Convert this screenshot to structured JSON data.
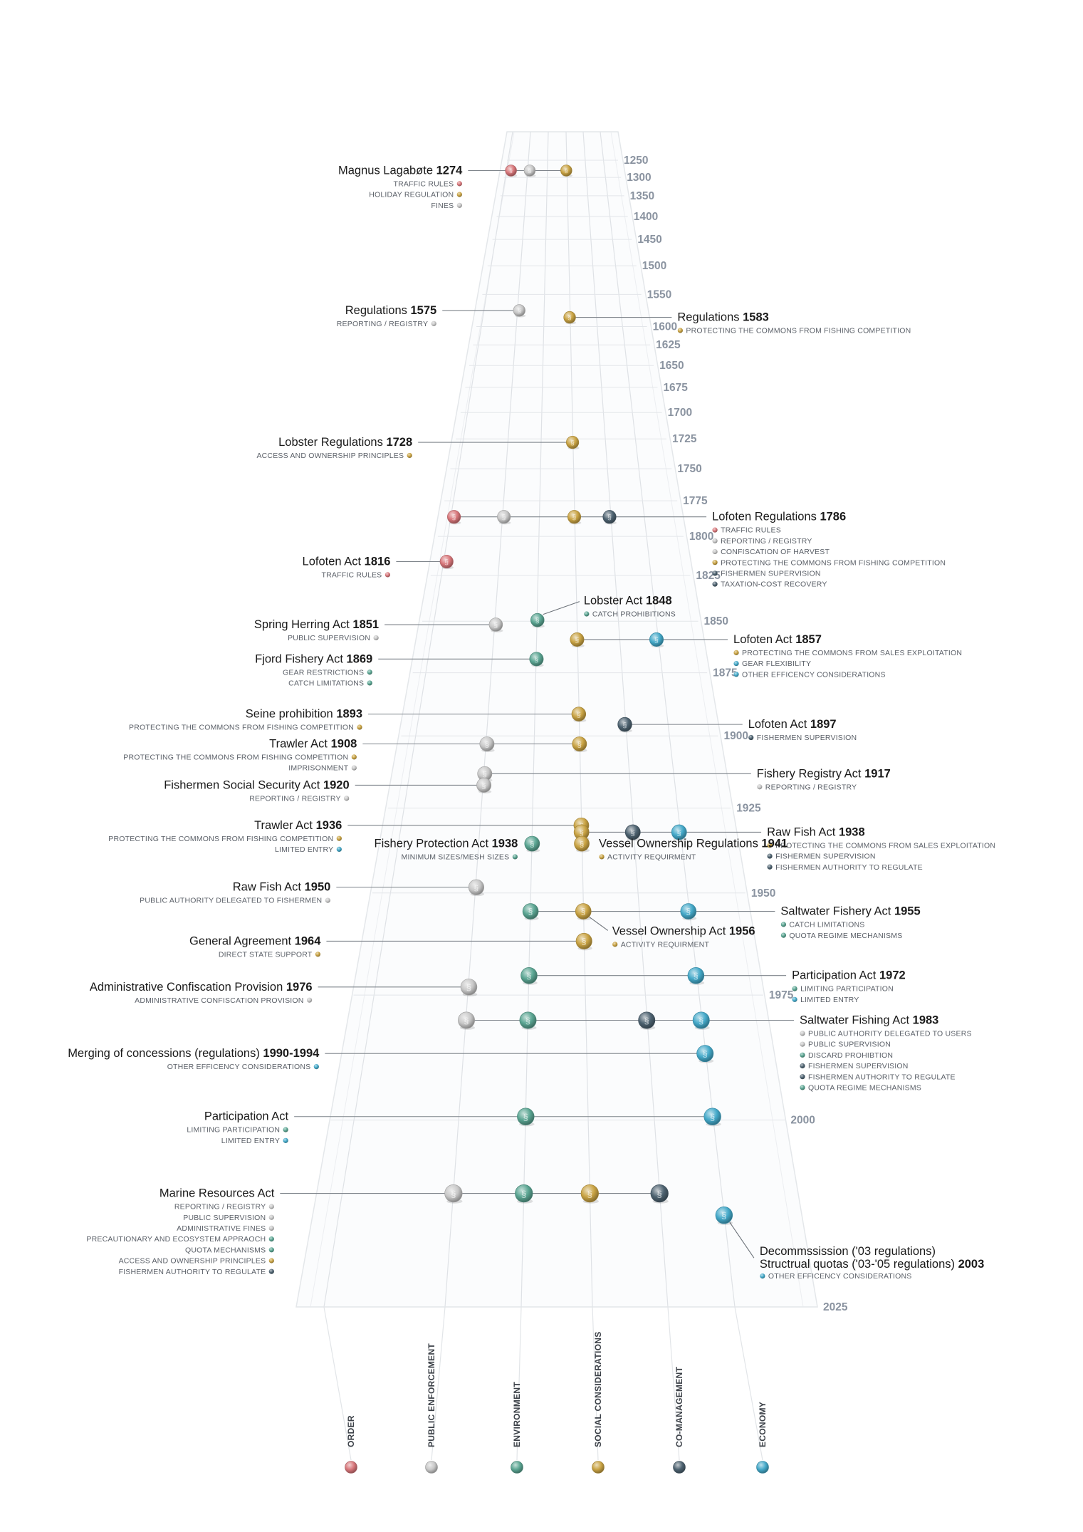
{
  "colors": {
    "order": "#d8767a",
    "enforcement": "#c8c8c8",
    "environment": "#5aa592",
    "social": "#c9a343",
    "comanagement": "#4d6270",
    "economy": "#44a9c9"
  },
  "icon_symbol": "§",
  "axes": [
    {
      "label": "ORDER",
      "key": "order"
    },
    {
      "label": "PUBLIC ENFORCEMENT",
      "key": "enforcement"
    },
    {
      "label": "ENVIRONMENT",
      "key": "environment"
    },
    {
      "label": "SOCIAL CONSIDERATIONS",
      "key": "social"
    },
    {
      "label": "CO-MANAGEMENT",
      "key": "comanagement"
    },
    {
      "label": "ECONOMY",
      "key": "economy"
    }
  ],
  "years": [
    {
      "label": "1250",
      "t": 0.0
    },
    {
      "label": "1300",
      "t": 0.015
    },
    {
      "label": "1350",
      "t": 0.031
    },
    {
      "label": "1400",
      "t": 0.049
    },
    {
      "label": "1450",
      "t": 0.069
    },
    {
      "label": "1500",
      "t": 0.092
    },
    {
      "label": "1550",
      "t": 0.117
    },
    {
      "label": "1600",
      "t": 0.145
    },
    {
      "label": "1625",
      "t": 0.161
    },
    {
      "label": "1650",
      "t": 0.179
    },
    {
      "label": "1675",
      "t": 0.198
    },
    {
      "label": "1700",
      "t": 0.22
    },
    {
      "label": "1725",
      "t": 0.243
    },
    {
      "label": "1750",
      "t": 0.269
    },
    {
      "label": "1775",
      "t": 0.297
    },
    {
      "label": "1800",
      "t": 0.328
    },
    {
      "label": "1825",
      "t": 0.362
    },
    {
      "label": "1850",
      "t": 0.402
    },
    {
      "label": "1875",
      "t": 0.447
    },
    {
      "label": "1900",
      "t": 0.502
    },
    {
      "label": "1925",
      "t": 0.565
    },
    {
      "label": "1950",
      "t": 0.639
    },
    {
      "label": "1975",
      "t": 0.728
    },
    {
      "label": "2000",
      "t": 0.837
    },
    {
      "label": "2025",
      "t": 1.0
    }
  ],
  "events": [
    {
      "title": "Magnus Lagabøte",
      "year": "1274",
      "side": "left",
      "t": 0.009,
      "balls": [
        {
          "a": 0,
          "s": 0.72
        },
        {
          "a": 1,
          "s": 0.72
        },
        {
          "a": 3,
          "s": 0.72
        }
      ],
      "cats": [
        {
          "label": "TRAFFIC RULES",
          "k": "order"
        },
        {
          "label": "HOLIDAY REGULATION",
          "k": "social"
        },
        {
          "label": "FINES",
          "k": "enforcement"
        }
      ]
    },
    {
      "title": "Regulations",
      "year": "1575",
      "side": "left",
      "t": 0.131,
      "balls": [
        {
          "a": 1,
          "s": 0.76
        }
      ],
      "cats": [
        {
          "label": "REPORTING / REGISTRY",
          "k": "enforcement"
        }
      ]
    },
    {
      "title": "Regulations",
      "year": "1583",
      "side": "right",
      "t": 0.137,
      "balls": [
        {
          "a": 3,
          "s": 0.76
        }
      ],
      "cats": [
        {
          "label": "PROTECTING THE COMMONS FROM FISHING COMPETITION",
          "k": "social"
        }
      ]
    },
    {
      "title": "Lobster Regulations",
      "year": "1728",
      "side": "left",
      "t": 0.246,
      "balls": [
        {
          "a": 3,
          "s": 0.8
        }
      ],
      "cats": [
        {
          "label": "ACCESS AND OWNERSHIP PRINCIPLES",
          "k": "social"
        }
      ]
    },
    {
      "title": "Lofoten Regulations",
      "year": "1786",
      "side": "right",
      "t": 0.311,
      "balls": [
        {
          "a": 0,
          "s": 0.84
        },
        {
          "a": 1,
          "s": 0.84
        },
        {
          "a": 3,
          "s": 0.84
        },
        {
          "a": 4,
          "s": 0.84
        }
      ],
      "cats": [
        {
          "label": "TRAFFIC RULES",
          "k": "order"
        },
        {
          "label": "REPORTING / REGISTRY",
          "k": "enforcement"
        },
        {
          "label": "CONFISCATION OF HARVEST",
          "k": "enforcement"
        },
        {
          "label": "PROTECTING THE COMMONS FROM FISHING COMPETITION",
          "k": "social"
        },
        {
          "label": "FISHERMEN SUPERVISION",
          "k": "comanagement"
        },
        {
          "label": "TAXATION-COST RECOVERY",
          "k": "comanagement"
        }
      ]
    },
    {
      "title": "Lofoten Act",
      "year": "1816",
      "side": "left",
      "t": 0.35,
      "balls": [
        {
          "a": 0,
          "s": 0.84
        }
      ],
      "cats": [
        {
          "label": "TRAFFIC RULES",
          "k": "order"
        }
      ]
    },
    {
      "title": "Lobster Act",
      "year": "1848",
      "side": "right",
      "t": 0.401,
      "leader": true,
      "balls": [
        {
          "a": 2,
          "s": 0.86
        }
      ],
      "cats": [
        {
          "label": "CATCH PROHIBITIONS",
          "k": "environment"
        }
      ]
    },
    {
      "title": "Spring Herring Act",
      "year": "1851",
      "side": "left",
      "t": 0.405,
      "balls": [
        {
          "a": 1,
          "s": 0.86
        }
      ],
      "cats": [
        {
          "label": "PUBLIC SUPERVISION",
          "k": "enforcement"
        }
      ]
    },
    {
      "title": "Lofoten Act",
      "year": "1857",
      "side": "right",
      "t": 0.418,
      "balls": [
        {
          "a": 3,
          "s": 0.88
        },
        {
          "a": 5,
          "s": 0.88
        }
      ],
      "cats": [
        {
          "label": "PROTECTING THE COMMONS FROM SALES EXPLOITATION",
          "k": "social"
        },
        {
          "label": "GEAR FLEXIBILITY",
          "k": "economy"
        },
        {
          "label": "OTHER EFFICENCY CONSIDERATIONS",
          "k": "economy"
        }
      ]
    },
    {
      "title": "Fjord Fishery Act",
      "year": "1869",
      "side": "left",
      "t": 0.435,
      "balls": [
        {
          "a": 2,
          "s": 0.88
        }
      ],
      "cats": [
        {
          "label": "GEAR RESTRICTIONS",
          "k": "environment"
        },
        {
          "label": "CATCH LIMITATIONS",
          "k": "environment"
        }
      ]
    },
    {
      "title": "Seine prohibition",
      "year": "1893",
      "side": "left",
      "t": 0.483,
      "balls": [
        {
          "a": 3,
          "s": 0.9
        }
      ],
      "cats": [
        {
          "label": "PROTECTING THE COMMONS FROM FISHING COMPETITION",
          "k": "social"
        }
      ]
    },
    {
      "title": "Lofoten Act",
      "year": "1897",
      "side": "right",
      "t": 0.492,
      "balls": [
        {
          "a": 4,
          "s": 0.9
        }
      ],
      "cats": [
        {
          "label": "FISHERMEN SUPERVISION",
          "k": "comanagement"
        }
      ]
    },
    {
      "title": "Trawler Act",
      "year": "1908",
      "side": "left",
      "t": 0.509,
      "balls": [
        {
          "a": 1,
          "s": 0.92
        },
        {
          "a": 3,
          "s": 0.92
        }
      ],
      "cats": [
        {
          "label": "PROTECTING THE COMMONS FROM FISHING COMPETITION",
          "k": "social"
        },
        {
          "label": "IMPRISONMENT",
          "k": "enforcement"
        }
      ]
    },
    {
      "title": "Fishery Registry Act",
      "year": "1917",
      "side": "right",
      "t": 0.535,
      "balls": [
        {
          "a": 1,
          "s": 0.92
        }
      ],
      "cats": [
        {
          "label": "REPORTING / REGISTRY",
          "k": "enforcement"
        }
      ]
    },
    {
      "title": "Fishermen Social Security Act",
      "year": "1920",
      "side": "left",
      "t": 0.545,
      "balls": [
        {
          "a": 1,
          "s": 0.92
        }
      ],
      "cats": [
        {
          "label": "REPORTING / REGISTRY",
          "k": "enforcement"
        }
      ]
    },
    {
      "title": "Trawler Act",
      "year": "1936",
      "side": "left",
      "t": 0.58,
      "balls": [
        {
          "a": 3,
          "s": 0.96
        }
      ],
      "cats": [
        {
          "label": "PROTECTING THE COMMONS FROM FISHING COMPETITION",
          "k": "social"
        },
        {
          "label": "LIMITED ENTRY",
          "k": "economy"
        }
      ]
    },
    {
      "title": "Raw Fish Act",
      "year": "1938",
      "side": "right",
      "t": 0.586,
      "balls": [
        {
          "a": 3,
          "s": 0.96
        },
        {
          "a": 4,
          "s": 0.96
        },
        {
          "a": 5,
          "s": 0.96
        }
      ],
      "cats": [
        {
          "label": "PROTECTING THE COMMONS FROM SALES EXPLOITATION",
          "k": "social"
        },
        {
          "label": "FISHERMEN SUPERVISION",
          "k": "comanagement"
        },
        {
          "label": "FISHERMEN AUTHORITY TO REGULATE",
          "k": "comanagement"
        }
      ]
    },
    {
      "title": "Fishery Protection Act",
      "year": "1938",
      "side": "left",
      "t": 0.596,
      "short": true,
      "balls": [
        {
          "a": 2,
          "s": 0.96
        }
      ],
      "cats": [
        {
          "label": "MINIMUM SIZES/MESH SIZES",
          "k": "environment"
        }
      ]
    },
    {
      "title": "Vessel Ownership Regulations",
      "year": "1941",
      "side": "right",
      "t": 0.596,
      "short": true,
      "balls": [
        {
          "a": 3,
          "s": 0.96
        }
      ],
      "cats": [
        {
          "label": "ACTIVITY REQUIRMENT",
          "k": "social"
        }
      ]
    },
    {
      "title": "Raw Fish Act",
      "year": "1950",
      "side": "left",
      "t": 0.634,
      "balls": [
        {
          "a": 1,
          "s": 0.98
        }
      ],
      "cats": [
        {
          "label": "PUBLIC AUTHORITY DELEGATED TO FISHERMEN",
          "k": "enforcement"
        }
      ]
    },
    {
      "title": "Saltwater Fishery Act",
      "year": "1955",
      "side": "right",
      "t": 0.655,
      "balls": [
        {
          "a": 2,
          "s": 1.0
        },
        {
          "a": 3,
          "s": 1.0
        },
        {
          "a": 5,
          "s": 1.0
        }
      ],
      "cats": [
        {
          "label": "CATCH LIMITATIONS",
          "k": "environment"
        },
        {
          "label": "QUOTA REGIME MECHANISMS",
          "k": "environment"
        }
      ]
    },
    {
      "title": "Vessel Ownership Act",
      "year": "1956",
      "side": "right",
      "t": 0.668,
      "leader": true,
      "balls": [],
      "cats": [
        {
          "label": "ACTIVITY REQUIRMENT",
          "k": "social"
        }
      ]
    },
    {
      "title": "General Agreement",
      "year": "1964",
      "side": "left",
      "t": 0.681,
      "balls": [
        {
          "a": 3,
          "s": 1.02
        }
      ],
      "cats": [
        {
          "label": "DIRECT STATE SUPPORT",
          "k": "social"
        }
      ]
    },
    {
      "title": "Participation Act",
      "year": "1972",
      "side": "right",
      "t": 0.711,
      "balls": [
        {
          "a": 2,
          "s": 1.04
        },
        {
          "a": 5,
          "s": 1.04
        }
      ],
      "cats": [
        {
          "label": "LIMITING PARTICIPATION",
          "k": "environment"
        },
        {
          "label": "LIMITED ENTRY",
          "k": "economy"
        }
      ]
    },
    {
      "title": "Administrative Confiscation Provision",
      "year": "1976",
      "side": "left",
      "t": 0.721,
      "balls": [
        {
          "a": 1,
          "s": 1.04
        }
      ],
      "cats": [
        {
          "label": "ADMINISTRATIVE CONFISCATION PROVISION",
          "k": "enforcement"
        }
      ]
    },
    {
      "title": "Saltwater Fishing Act",
      "year": "1983",
      "side": "right",
      "t": 0.75,
      "balls": [
        {
          "a": 1,
          "s": 1.06
        },
        {
          "a": 2,
          "s": 1.06
        },
        {
          "a": 4,
          "s": 1.06
        },
        {
          "a": 5,
          "s": 1.06
        }
      ],
      "cats": [
        {
          "label": "PUBLIC AUTHORITY DELEGATED TO USERS",
          "k": "enforcement"
        },
        {
          "label": "PUBLIC SUPERVISION",
          "k": "enforcement"
        },
        {
          "label": "DISCARD PROHIBTION",
          "k": "environment"
        },
        {
          "label": "FISHERMEN SUPERVISION",
          "k": "comanagement"
        },
        {
          "label": "FISHERMEN AUTHORITY TO REGULATE",
          "k": "comanagement"
        },
        {
          "label": "QUOTA REGIME MECHANISMS",
          "k": "environment"
        }
      ]
    },
    {
      "title": "Merging of concessions (regulations)",
      "year": "1990-1994",
      "side": "left",
      "t": 0.779,
      "balls": [
        {
          "a": 5,
          "s": 1.06
        }
      ],
      "cats": [
        {
          "label": "OTHER EFFICENCY CONSIDERATIONS",
          "k": "economy"
        }
      ]
    },
    {
      "title": "Participation Act",
      "year": "",
      "side": "left",
      "t": 0.834,
      "balls": [
        {
          "a": 2,
          "s": 1.08
        },
        {
          "a": 5,
          "s": 1.08
        }
      ],
      "cats": [
        {
          "label": "LIMITING PARTICIPATION",
          "k": "environment"
        },
        {
          "label": "LIMITED ENTRY",
          "k": "economy"
        }
      ]
    },
    {
      "title": "Marine Resources Act",
      "year": "",
      "side": "left",
      "t": 0.901,
      "balls": [
        {
          "a": 1,
          "s": 1.12
        },
        {
          "a": 2,
          "s": 1.12
        },
        {
          "a": 3,
          "s": 1.12
        },
        {
          "a": 4,
          "s": 1.12
        }
      ],
      "cats": [
        {
          "label": "REPORTING / REGISTRY",
          "k": "enforcement"
        },
        {
          "label": "PUBLIC SUPERVISION",
          "k": "enforcement"
        },
        {
          "label": "ADMINISTRATIVE FINES",
          "k": "enforcement"
        },
        {
          "label": "PRECAUTIONARY AND ECOSYSTEM APPRAOCH",
          "k": "environment"
        },
        {
          "label": "QUOTA MECHANISMS",
          "k": "environment"
        },
        {
          "label": "ACCESS AND OWNERSHIP PRINCIPLES",
          "k": "social"
        },
        {
          "label": "FISHERMEN AUTHORITY TO REGULATE",
          "k": "comanagement"
        }
      ]
    },
    {
      "title": "Decommssission ('03 regulations)",
      "title2": "Structrual quotas ('03-'05 regulations)",
      "year": "2003",
      "side": "right",
      "t": 0.92,
      "leader": true,
      "balls": [
        {
          "a": 5,
          "s": 1.08
        }
      ],
      "cats": [
        {
          "label": "OTHER EFFICENCY CONSIDERATIONS",
          "k": "economy"
        }
      ]
    }
  ]
}
